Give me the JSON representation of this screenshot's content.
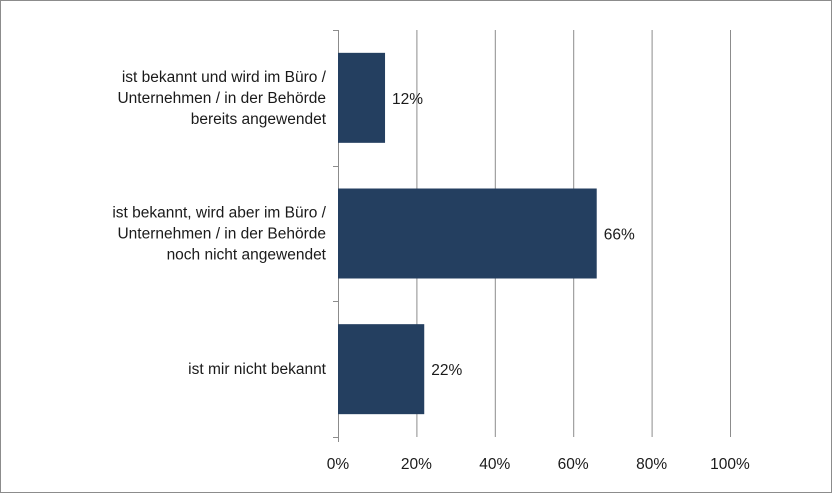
{
  "chart_data": {
    "type": "bar",
    "orientation": "horizontal",
    "categories": [
      [
        "ist bekannt und wird im Büro /",
        "Unternehmen / in der Behörde",
        "bereits angewendet"
      ],
      [
        "ist bekannt, wird aber im Büro /",
        "Unternehmen / in der Behörde",
        "noch nicht angewendet"
      ],
      [
        "ist mir nicht bekannt"
      ]
    ],
    "values": [
      12,
      66,
      22
    ],
    "data_labels": [
      "12%",
      "66%",
      "22%"
    ],
    "xlim": [
      0,
      100
    ],
    "x_ticks": [
      0,
      20,
      40,
      60,
      80,
      100
    ],
    "x_tick_labels": [
      "0%",
      "20%",
      "40%",
      "60%",
      "80%",
      "100%"
    ],
    "grid": "vertical",
    "legend": "none",
    "colors": {
      "bar": "#243f60",
      "grid": "#8c8c8c",
      "axis": "#8c8c8c",
      "border": "#8c8c8c"
    }
  }
}
